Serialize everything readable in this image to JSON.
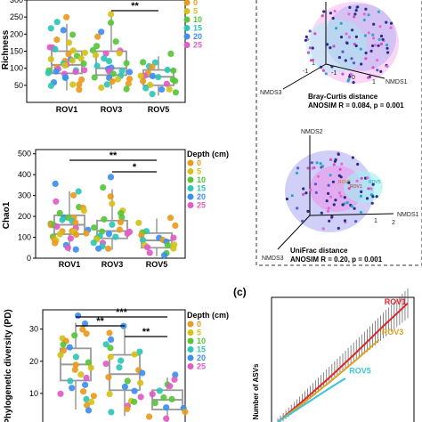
{
  "colors": {
    "depth_0": "#e89b1e",
    "depth_5": "#d4c21b",
    "depth_10": "#58c53a",
    "depth_15": "#2fc6b6",
    "depth_20": "#3d8ef0",
    "depth_25": "#e05cc6",
    "box": "#999999",
    "rov1": "#e0242a",
    "rov3": "#e0a021",
    "rov5": "#3ac6d6",
    "nmds_pink": "#f28ce8",
    "nmds_blue": "#a9a8f2",
    "nmds_cyan": "#9ef0f0",
    "dot_navy": "#2c2c8c"
  },
  "legend": {
    "title": "Depth (cm)",
    "levels": [
      "0",
      "5",
      "10",
      "15",
      "20",
      "25"
    ]
  },
  "chart_data": [
    {
      "type": "box",
      "panel": "richness",
      "ylabel": "Richness",
      "categories": [
        "ROV1",
        "ROV3",
        "ROV5"
      ],
      "yticks": [
        "50",
        "100",
        "150",
        "200",
        "250",
        "300"
      ],
      "ylim": [
        0,
        300
      ],
      "boxes": [
        {
          "name": "ROV1",
          "q1": 85,
          "median": 110,
          "q3": 150,
          "low": 35,
          "high": 230
        },
        {
          "name": "ROV3",
          "q1": 80,
          "median": 100,
          "q3": 150,
          "low": 40,
          "high": 250
        },
        {
          "name": "ROV5",
          "q1": 50,
          "median": 75,
          "q3": 95,
          "low": 20,
          "high": 135
        }
      ],
      "significance": [
        {
          "from": "ROV3",
          "to": "ROV5",
          "label": "**"
        }
      ],
      "points": [
        {
          "group": "ROV1",
          "values": [
            250,
            235,
            220,
            210,
            195,
            185,
            175,
            165,
            160,
            155,
            150,
            145,
            140,
            135,
            130,
            128,
            125,
            120,
            118,
            115,
            112,
            110,
            108,
            105,
            100,
            98,
            95,
            92,
            90,
            88,
            85,
            80,
            75,
            70,
            65,
            60,
            55,
            50,
            45,
            40
          ]
        },
        {
          "group": "ROV3",
          "values": [
            255,
            230,
            205,
            190,
            175,
            165,
            155,
            150,
            145,
            140,
            135,
            125,
            120,
            115,
            110,
            105,
            100,
            98,
            95,
            90,
            88,
            85,
            80,
            75,
            72,
            70,
            65,
            60,
            55,
            50,
            45,
            40
          ]
        },
        {
          "group": "ROV5",
          "values": [
            140,
            120,
            115,
            105,
            100,
            95,
            90,
            85,
            80,
            78,
            75,
            72,
            70,
            65,
            60,
            55,
            50,
            45,
            40,
            35,
            30,
            25
          ]
        }
      ]
    },
    {
      "type": "box",
      "panel": "chao1",
      "ylabel": "Chao1",
      "categories": [
        "ROV1",
        "ROV3",
        "ROV5"
      ],
      "yticks": [
        "0",
        "100",
        "200",
        "300",
        "400",
        "500"
      ],
      "ylim": [
        0,
        500
      ],
      "boxes": [
        {
          "name": "ROV1",
          "q1": 115,
          "median": 160,
          "q3": 205,
          "low": 30,
          "high": 320
        },
        {
          "name": "ROV3",
          "q1": 95,
          "median": 130,
          "q3": 180,
          "low": 40,
          "high": 330
        },
        {
          "name": "ROV5",
          "q1": 50,
          "median": 85,
          "q3": 120,
          "low": 10,
          "high": 190
        }
      ],
      "significance": [
        {
          "from": "ROV1",
          "to": "ROV5",
          "label": "**"
        },
        {
          "from": "ROV3",
          "to": "ROV5",
          "label": "*"
        }
      ],
      "points": [
        {
          "group": "ROV1",
          "values": [
            355,
            320,
            300,
            270,
            250,
            240,
            225,
            210,
            200,
            195,
            190,
            180,
            175,
            170,
            165,
            160,
            155,
            150,
            145,
            140,
            135,
            130,
            125,
            120,
            115,
            110,
            100,
            95,
            90,
            80,
            70,
            60,
            50,
            40
          ]
        },
        {
          "group": "ROV3",
          "values": [
            385,
            340,
            300,
            260,
            230,
            210,
            190,
            180,
            170,
            160,
            150,
            140,
            130,
            125,
            120,
            115,
            110,
            100,
            95,
            90,
            80,
            70,
            60,
            50,
            40
          ]
        },
        {
          "group": "ROV5",
          "values": [
            195,
            165,
            150,
            130,
            120,
            110,
            100,
            95,
            90,
            85,
            80,
            70,
            65,
            60,
            50,
            40,
            30,
            20,
            15
          ]
        }
      ]
    },
    {
      "type": "box",
      "panel": "pd",
      "ylabel": "Phylogenetic diversity (PD)",
      "categories": [
        "ROV1",
        "ROV3",
        "ROV5"
      ],
      "yticks": [
        "10",
        "20",
        "30"
      ],
      "ylim": [
        0,
        35
      ],
      "boxes": [
        {
          "name": "ROV1",
          "q1": 14,
          "median": 19,
          "q3": 24,
          "low": 5,
          "high": 32
        },
        {
          "name": "ROV3",
          "q1": 11,
          "median": 16,
          "q3": 22,
          "low": 3,
          "high": 30
        },
        {
          "name": "ROV5",
          "q1": 5,
          "median": 8,
          "q3": 11,
          "low": 1,
          "high": 15
        }
      ],
      "significance": [
        {
          "from": "ROV1",
          "to": "ROV5",
          "label": "***"
        },
        {
          "from": "ROV1",
          "to": "ROV3",
          "label": "**"
        },
        {
          "from": "ROV3",
          "to": "ROV5",
          "label": "**"
        }
      ],
      "points": [
        {
          "group": "ROV1",
          "values": [
            34,
            32,
            30,
            29,
            28,
            27,
            26,
            25,
            24,
            23,
            22,
            21,
            20,
            19,
            18,
            17,
            16,
            15,
            14,
            13,
            12,
            11,
            10,
            9,
            8,
            7,
            6,
            5
          ]
        },
        {
          "group": "ROV3",
          "values": [
            31,
            29,
            27,
            25,
            24,
            23,
            22,
            21,
            20,
            19,
            18,
            17,
            16,
            15,
            14,
            13,
            12,
            11,
            10,
            9,
            8,
            7,
            6,
            5,
            4
          ]
        },
        {
          "group": "ROV5",
          "values": [
            16,
            14,
            13,
            12,
            11,
            10,
            9,
            8,
            7,
            6,
            5,
            4,
            3,
            2
          ]
        }
      ]
    },
    {
      "type": "scatter3d",
      "panel": "nmds_bray",
      "axes": [
        "NMDS1",
        "NMDS2",
        "NMDS3"
      ],
      "title": "Bray-Curtis distance",
      "stat": "ANOSIM R = 0.084, p = 0.001",
      "ticks": [
        "-1",
        "1",
        "-1",
        "0",
        "1"
      ]
    },
    {
      "type": "scatter3d",
      "panel": "nmds_unifrac",
      "axes": [
        "NMDS1",
        "NMDS2",
        "NMDS3"
      ],
      "title": "UniFrac distance",
      "stat": "ANOSIM R = 0.20, p = 0.001",
      "ticks": [
        "1",
        "2"
      ],
      "group_labels": [
        "ROV1",
        "ROV3",
        "ROV5"
      ]
    },
    {
      "type": "line",
      "panel": "rarefaction",
      "subpanel_label": "(c)",
      "ylabel": "Number of ASVs",
      "series": [
        {
          "name": "ROV1",
          "points": [
            [
              0,
              0
            ],
            [
              0.2,
              0.18
            ],
            [
              0.4,
              0.37
            ],
            [
              0.6,
              0.57
            ],
            [
              0.8,
              0.78
            ],
            [
              1.0,
              0.98
            ]
          ]
        },
        {
          "name": "ROV3",
          "points": [
            [
              0,
              0
            ],
            [
              0.2,
              0.16
            ],
            [
              0.4,
              0.33
            ],
            [
              0.6,
              0.51
            ],
            [
              0.78,
              0.68
            ]
          ]
        },
        {
          "name": "ROV5",
          "points": [
            [
              0,
              0
            ],
            [
              0.2,
              0.14
            ],
            [
              0.4,
              0.28
            ],
            [
              0.52,
              0.36
            ]
          ]
        }
      ]
    }
  ]
}
